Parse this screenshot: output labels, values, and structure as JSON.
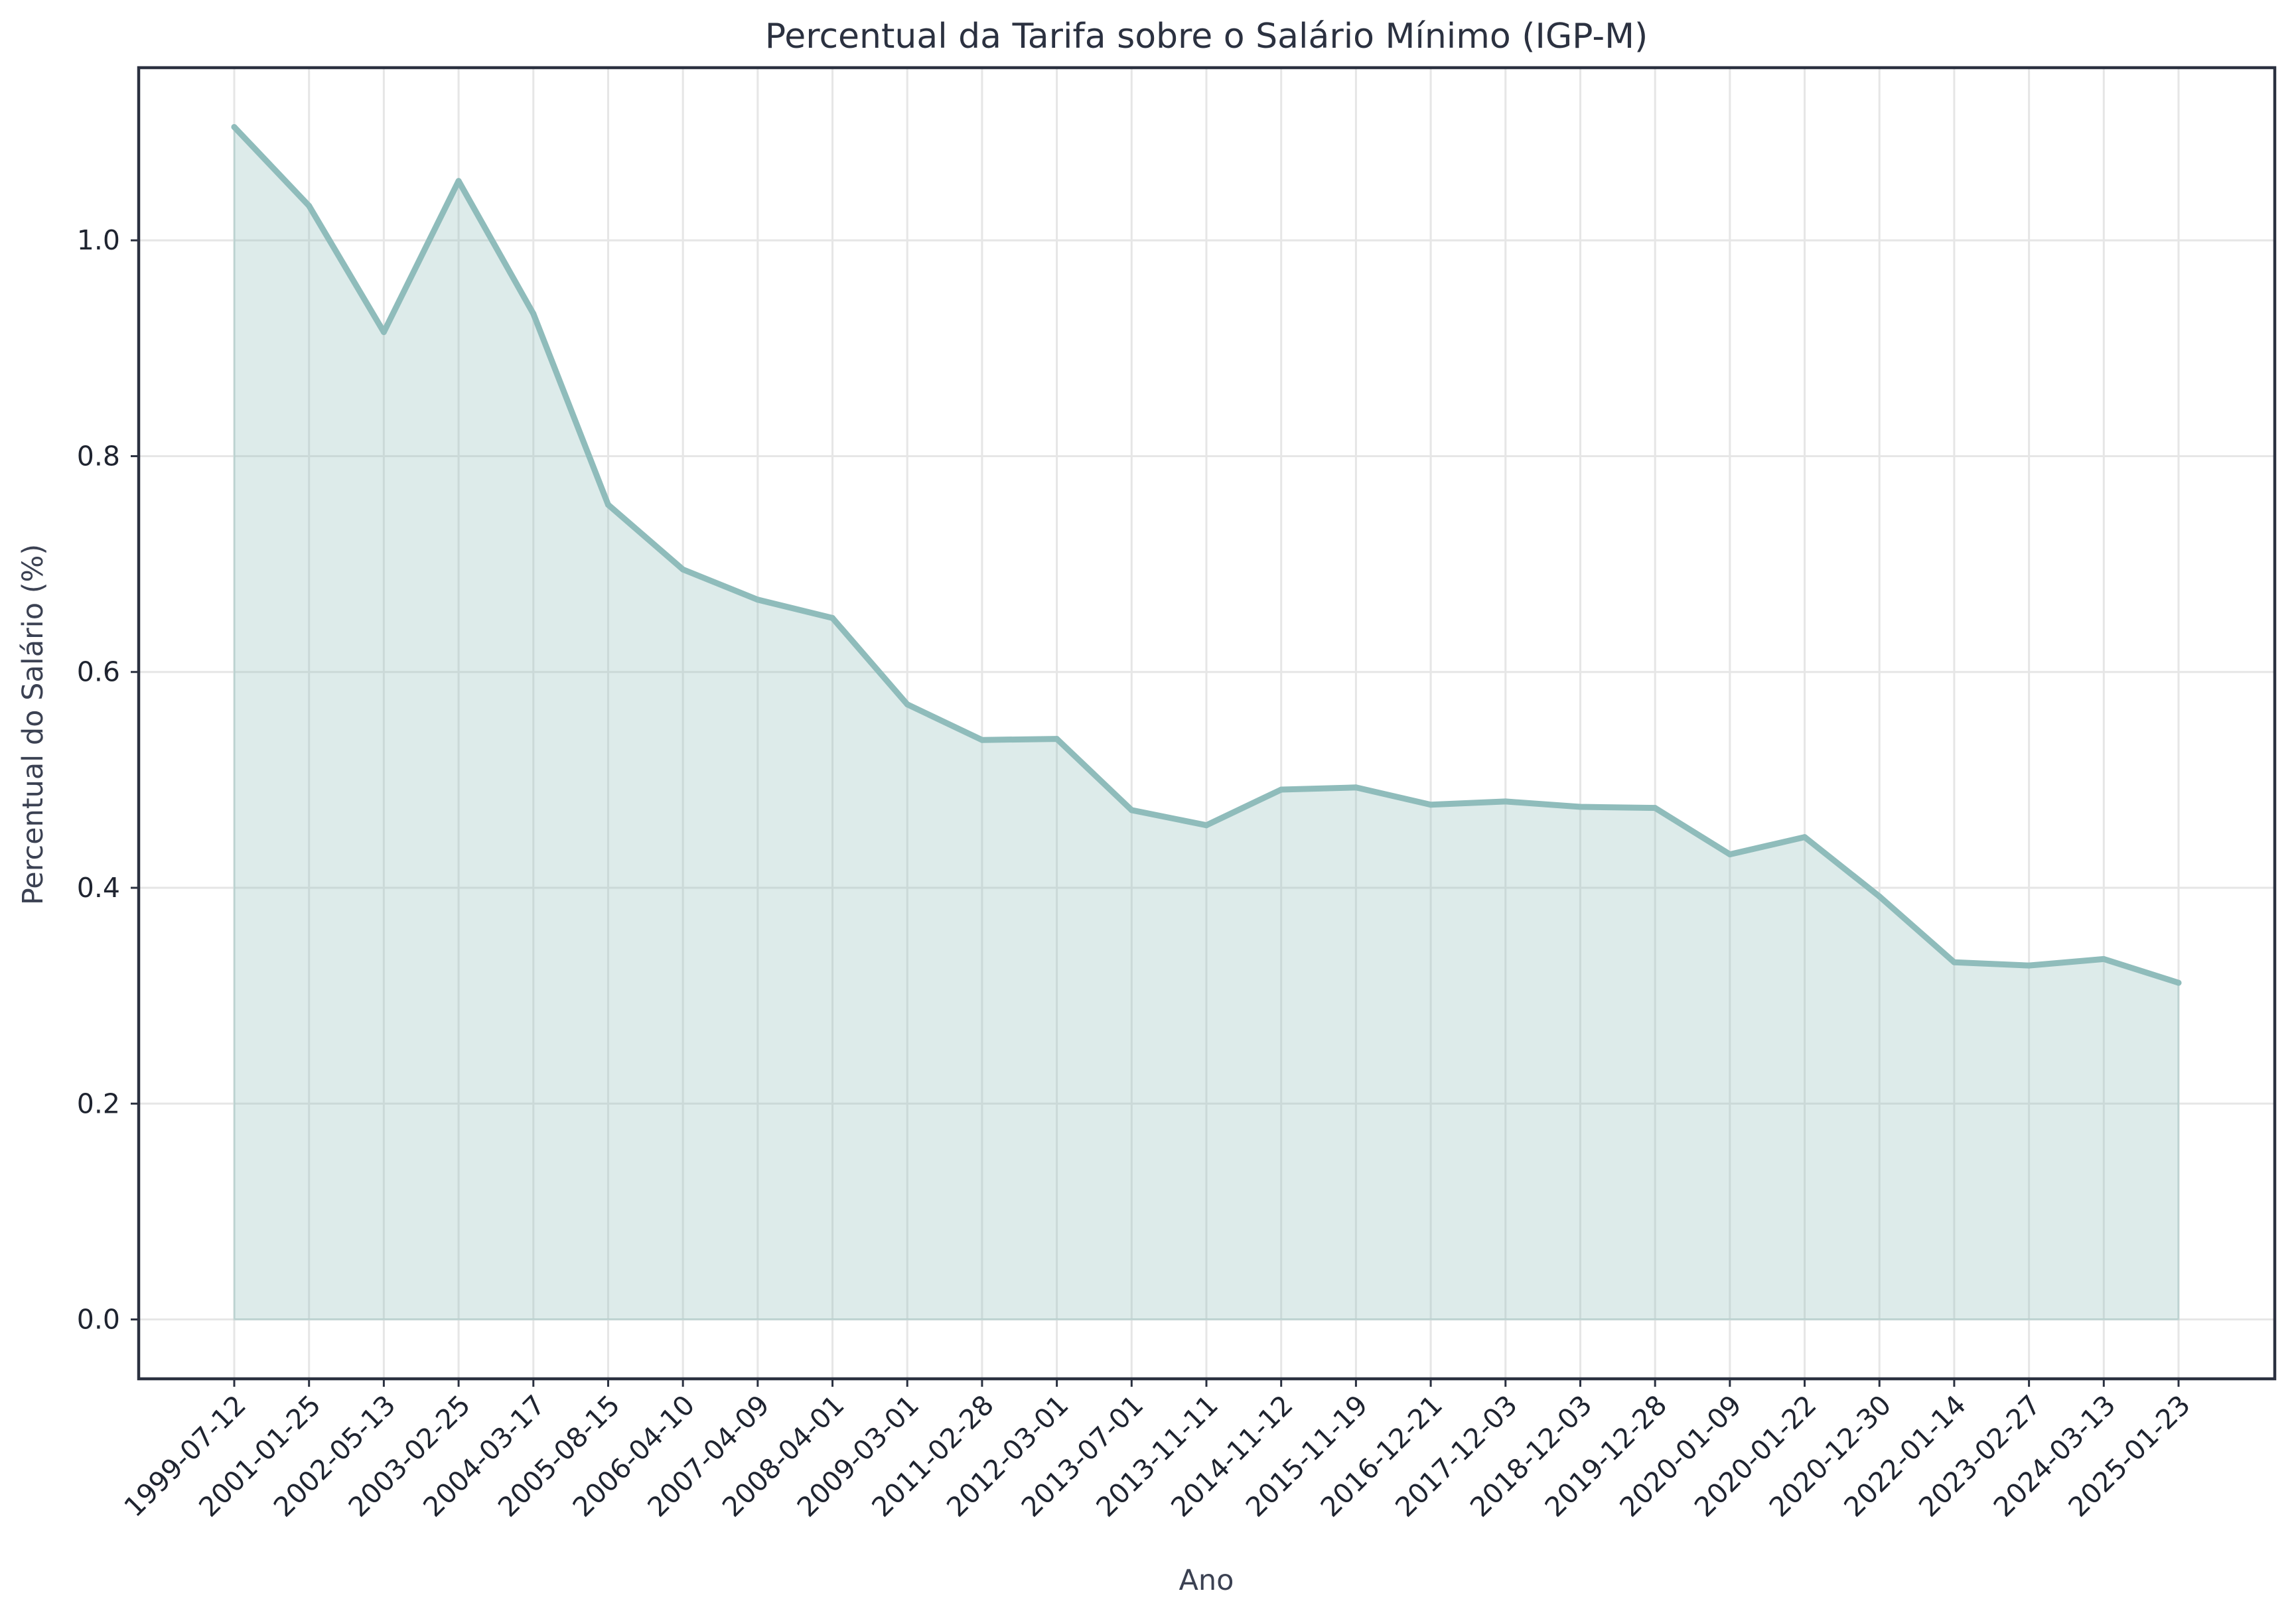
{
  "chart_data": {
    "type": "area",
    "title": "Percentual da Tarifa sobre o Salário Mínimo (IGP-M)",
    "xlabel": "Ano",
    "ylabel": "Percentual do Salário (%)",
    "ylim": [
      -0.055,
      1.16
    ],
    "yticks": [
      0.0,
      0.2,
      0.4,
      0.6,
      0.8,
      1.0
    ],
    "grid": true,
    "colors": {
      "line": "#8fbcbb",
      "fill": "#8fbcbb",
      "frame": "#2b3140"
    },
    "categories": [
      "1999-07-12",
      "2001-01-25",
      "2002-05-13",
      "2003-02-25",
      "2004-03-17",
      "2005-08-15",
      "2006-04-10",
      "2007-04-09",
      "2008-04-01",
      "2009-03-01",
      "2011-02-28",
      "2012-03-01",
      "2013-07-01",
      "2013-11-11",
      "2014-11-12",
      "2015-11-19",
      "2016-12-21",
      "2017-12-03",
      "2018-12-03",
      "2019-12-28",
      "2020-01-09",
      "2020-01-22",
      "2020-12-30",
      "2022-01-14",
      "2023-02-27",
      "2024-03-13",
      "2025-01-23"
    ],
    "values": [
      1.105,
      1.032,
      0.915,
      1.055,
      0.932,
      0.755,
      0.695,
      0.667,
      0.65,
      0.57,
      0.537,
      0.538,
      0.472,
      0.458,
      0.491,
      0.493,
      0.477,
      0.48,
      0.475,
      0.474,
      0.431,
      0.447,
      0.392,
      0.331,
      0.328,
      0.334,
      0.312
    ]
  }
}
